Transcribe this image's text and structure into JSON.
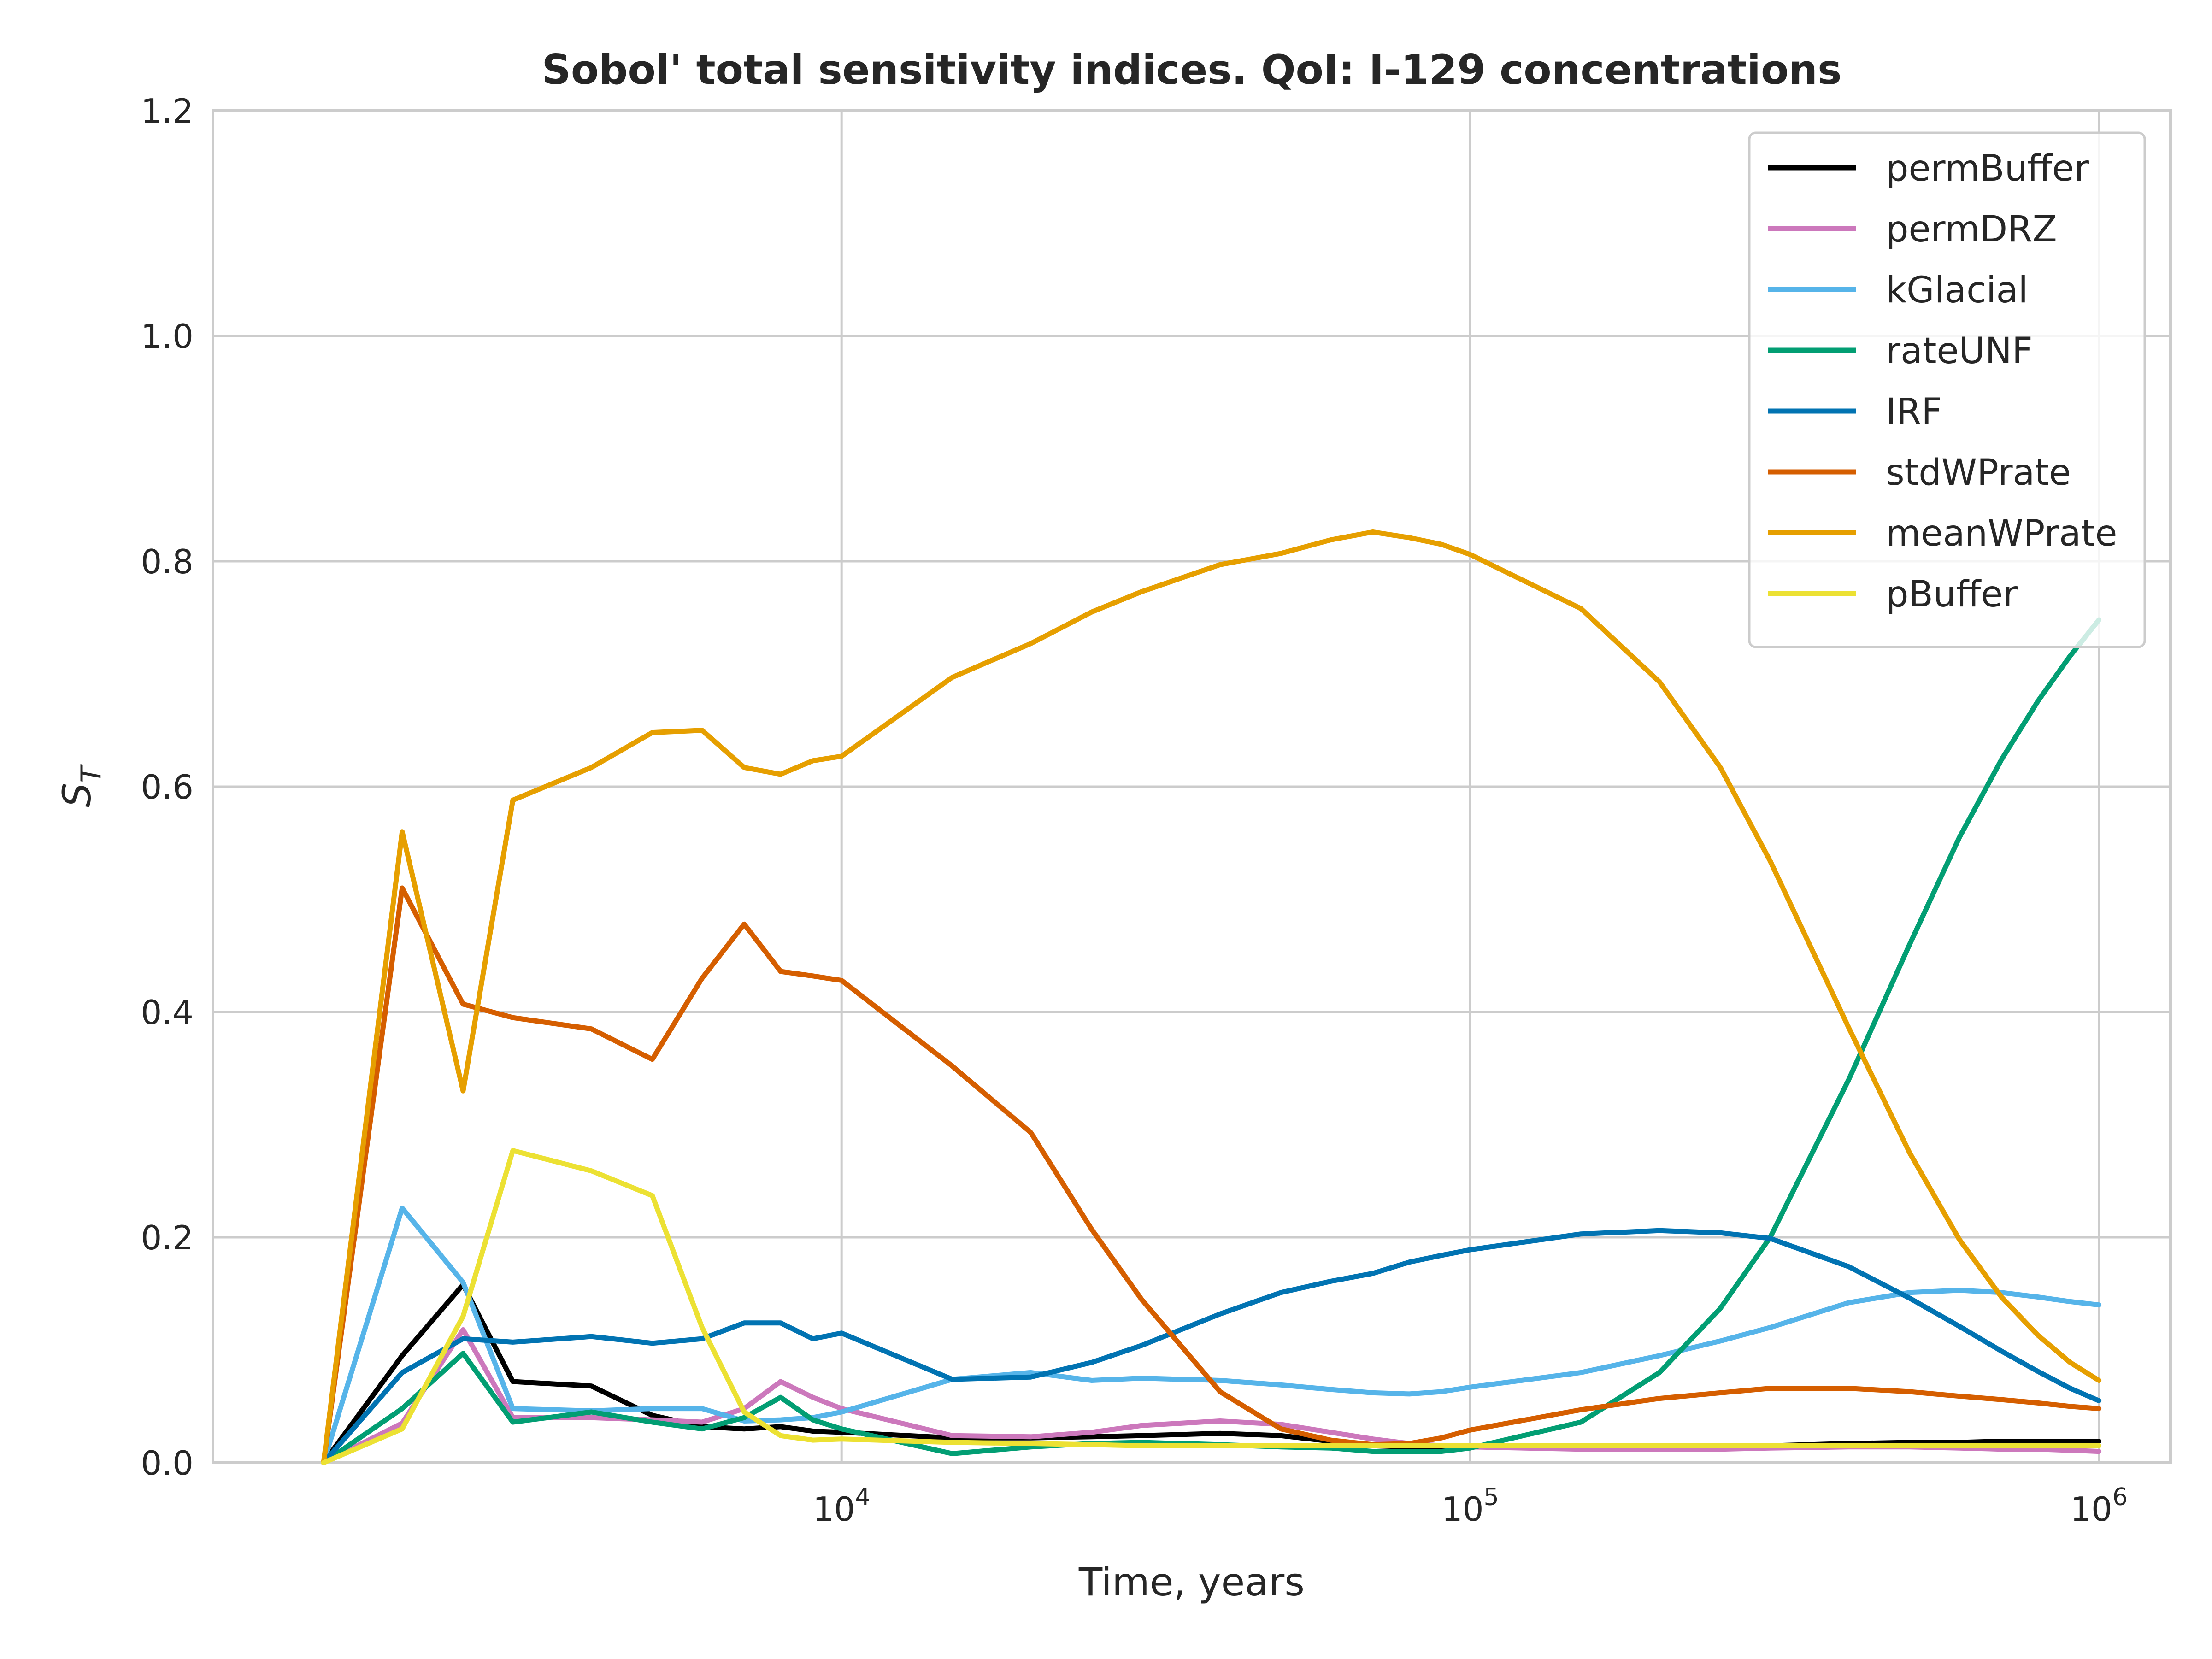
{
  "chart_data": {
    "type": "line",
    "title": "Sobol' total sensitivity indices. QoI: I-129 concentrations",
    "xlabel": "Time, years",
    "ylabel": "S_T",
    "xscale": "log",
    "xlim": [
      1000,
      1300000
    ],
    "ylim": [
      0,
      1.2
    ],
    "x_ticks": [
      {
        "value": 10000,
        "base": "10",
        "exp": "4"
      },
      {
        "value": 100000,
        "base": "10",
        "exp": "5"
      },
      {
        "value": 1000000,
        "base": "10",
        "exp": "6"
      }
    ],
    "y_ticks": [
      {
        "value": 0.0,
        "label": "0.0"
      },
      {
        "value": 0.2,
        "label": "0.2"
      },
      {
        "value": 0.4,
        "label": "0.4"
      },
      {
        "value": 0.6,
        "label": "0.6"
      },
      {
        "value": 0.8,
        "label": "0.8"
      },
      {
        "value": 1.0,
        "label": "1.0"
      },
      {
        "value": 1.2,
        "label": "1.2"
      }
    ],
    "grid": true,
    "legend_position": "upper-right",
    "x": [
      1500,
      2000,
      2500,
      3000,
      4000,
      5000,
      6000,
      7000,
      8000,
      9000,
      10000,
      15000,
      20000,
      25000,
      30000,
      40000,
      50000,
      60000,
      70000,
      80000,
      90000,
      100000,
      150000,
      200000,
      250000,
      300000,
      400000,
      500000,
      600000,
      700000,
      800000,
      900000,
      1000000
    ],
    "series": [
      {
        "name": "permBuffer",
        "color": "#000000",
        "values": [
          0.0,
          0.095,
          0.158,
          0.072,
          0.068,
          0.042,
          0.032,
          0.03,
          0.032,
          0.028,
          0.027,
          0.022,
          0.022,
          0.023,
          0.024,
          0.026,
          0.024,
          0.019,
          0.015,
          0.014,
          0.014,
          0.015,
          0.015,
          0.014,
          0.014,
          0.015,
          0.017,
          0.018,
          0.018,
          0.019,
          0.019,
          0.019,
          0.019
        ]
      },
      {
        "name": "permDRZ",
        "color": "#cc78bc",
        "values": [
          0.0,
          0.035,
          0.118,
          0.04,
          0.04,
          0.038,
          0.036,
          0.048,
          0.072,
          0.058,
          0.048,
          0.024,
          0.023,
          0.027,
          0.033,
          0.037,
          0.034,
          0.027,
          0.021,
          0.017,
          0.015,
          0.014,
          0.012,
          0.012,
          0.012,
          0.013,
          0.014,
          0.014,
          0.013,
          0.012,
          0.012,
          0.011,
          0.01
        ]
      },
      {
        "name": "kGlacial",
        "color": "#56b4e9",
        "values": [
          0.0,
          0.226,
          0.16,
          0.048,
          0.046,
          0.048,
          0.048,
          0.037,
          0.038,
          0.04,
          0.045,
          0.074,
          0.08,
          0.073,
          0.075,
          0.073,
          0.069,
          0.065,
          0.062,
          0.061,
          0.063,
          0.067,
          0.08,
          0.095,
          0.108,
          0.12,
          0.142,
          0.151,
          0.153,
          0.151,
          0.147,
          0.143,
          0.14
        ]
      },
      {
        "name": "rateUNF",
        "color": "#029e73",
        "values": [
          0.0,
          0.048,
          0.097,
          0.036,
          0.045,
          0.036,
          0.03,
          0.04,
          0.058,
          0.038,
          0.03,
          0.008,
          0.014,
          0.017,
          0.018,
          0.016,
          0.014,
          0.013,
          0.01,
          0.01,
          0.01,
          0.013,
          0.036,
          0.08,
          0.137,
          0.2,
          0.34,
          0.46,
          0.555,
          0.624,
          0.676,
          0.716,
          0.748
        ]
      },
      {
        "name": "IRF",
        "color": "#0173b2",
        "values": [
          0.0,
          0.08,
          0.11,
          0.107,
          0.112,
          0.106,
          0.11,
          0.124,
          0.124,
          0.11,
          0.115,
          0.074,
          0.076,
          0.089,
          0.104,
          0.132,
          0.151,
          0.161,
          0.168,
          0.178,
          0.184,
          0.189,
          0.203,
          0.206,
          0.204,
          0.199,
          0.174,
          0.146,
          0.121,
          0.099,
          0.081,
          0.066,
          0.055
        ]
      },
      {
        "name": "stdWPrate",
        "color": "#d55e00",
        "values": [
          0.0,
          0.51,
          0.407,
          0.395,
          0.385,
          0.358,
          0.43,
          0.478,
          0.436,
          0.432,
          0.428,
          0.352,
          0.293,
          0.207,
          0.145,
          0.063,
          0.03,
          0.02,
          0.016,
          0.017,
          0.022,
          0.029,
          0.047,
          0.057,
          0.062,
          0.066,
          0.066,
          0.063,
          0.059,
          0.056,
          0.053,
          0.05,
          0.048
        ]
      },
      {
        "name": "meanWPrate",
        "color": "#e69f00",
        "values": [
          0.0,
          0.56,
          0.33,
          0.588,
          0.617,
          0.648,
          0.65,
          0.617,
          0.611,
          0.623,
          0.627,
          0.697,
          0.727,
          0.755,
          0.773,
          0.797,
          0.807,
          0.819,
          0.826,
          0.821,
          0.815,
          0.806,
          0.758,
          0.693,
          0.617,
          0.534,
          0.386,
          0.275,
          0.198,
          0.147,
          0.113,
          0.089,
          0.073
        ]
      },
      {
        "name": "pBuffer",
        "color": "#ece133",
        "values": [
          0.0,
          0.03,
          0.13,
          0.277,
          0.259,
          0.237,
          0.12,
          0.045,
          0.024,
          0.02,
          0.021,
          0.018,
          0.017,
          0.016,
          0.015,
          0.015,
          0.015,
          0.015,
          0.015,
          0.015,
          0.015,
          0.015,
          0.015,
          0.015,
          0.015,
          0.015,
          0.015,
          0.015,
          0.015,
          0.015,
          0.015,
          0.015,
          0.015
        ]
      }
    ]
  }
}
